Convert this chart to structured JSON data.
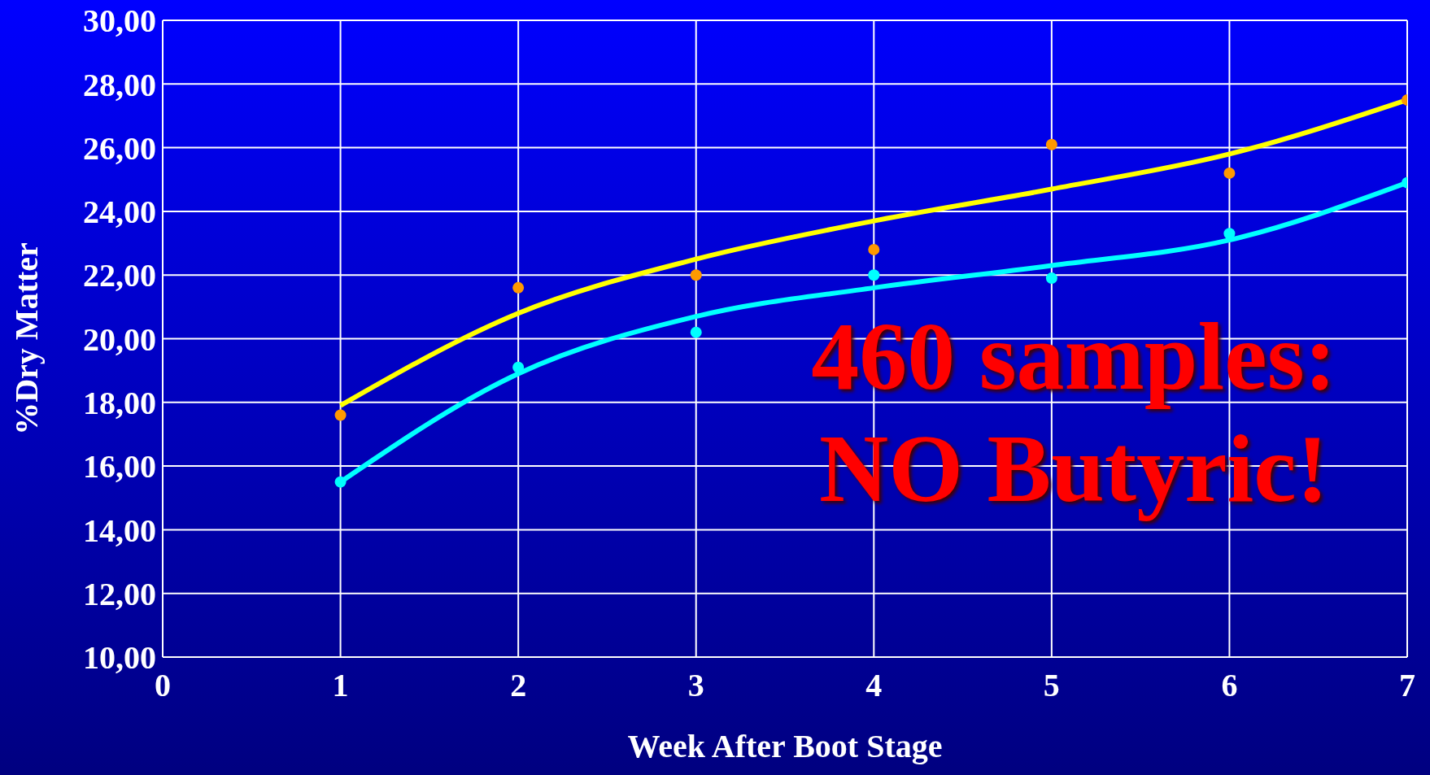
{
  "chart_data": {
    "type": "scatter",
    "xlabel": "Week After Boot Stage",
    "ylabel": "%Dry Matter",
    "xlim": [
      0,
      7
    ],
    "xticks": [
      0,
      1,
      2,
      3,
      4,
      5,
      6,
      7
    ],
    "ylim": [
      10,
      30
    ],
    "yticks": [
      {
        "value": 10,
        "label": "10,00"
      },
      {
        "value": 12,
        "label": "12,00"
      },
      {
        "value": 14,
        "label": "14,00"
      },
      {
        "value": 16,
        "label": "16,00"
      },
      {
        "value": 18,
        "label": "18,00"
      },
      {
        "value": 20,
        "label": "20,00"
      },
      {
        "value": 22,
        "label": "22,00"
      },
      {
        "value": 24,
        "label": "24,00"
      },
      {
        "value": 26,
        "label": "26,00"
      },
      {
        "value": 28,
        "label": "28,00"
      },
      {
        "value": 30,
        "label": "30,00"
      }
    ],
    "grid": true,
    "annotations": [
      "460 samples:",
      "NO Butyric!"
    ],
    "series": [
      {
        "marker": "circle",
        "color": "#ff9900",
        "x": [
          1,
          2,
          3,
          4,
          5,
          6,
          7
        ],
        "values": [
          17.6,
          21.6,
          22.0,
          22.8,
          26.1,
          25.2,
          27.5
        ]
      },
      {
        "marker": "circle",
        "color": "#00ffff",
        "x": [
          1,
          2,
          3,
          4,
          5,
          6,
          7
        ],
        "values": [
          15.5,
          19.1,
          20.2,
          22.0,
          21.9,
          23.3,
          24.9
        ]
      },
      {
        "type": "line",
        "marker": "none",
        "color": "#ffff00",
        "x": [
          1,
          2,
          3,
          4,
          5,
          6,
          7
        ],
        "values": [
          17.9,
          20.8,
          22.5,
          23.7,
          24.7,
          25.8,
          27.5
        ]
      },
      {
        "type": "line",
        "marker": "none",
        "color": "#00ffff",
        "x": [
          1,
          2,
          3,
          4,
          5,
          6,
          7
        ],
        "values": [
          15.5,
          18.9,
          20.7,
          21.6,
          22.3,
          23.1,
          24.9
        ]
      }
    ]
  }
}
